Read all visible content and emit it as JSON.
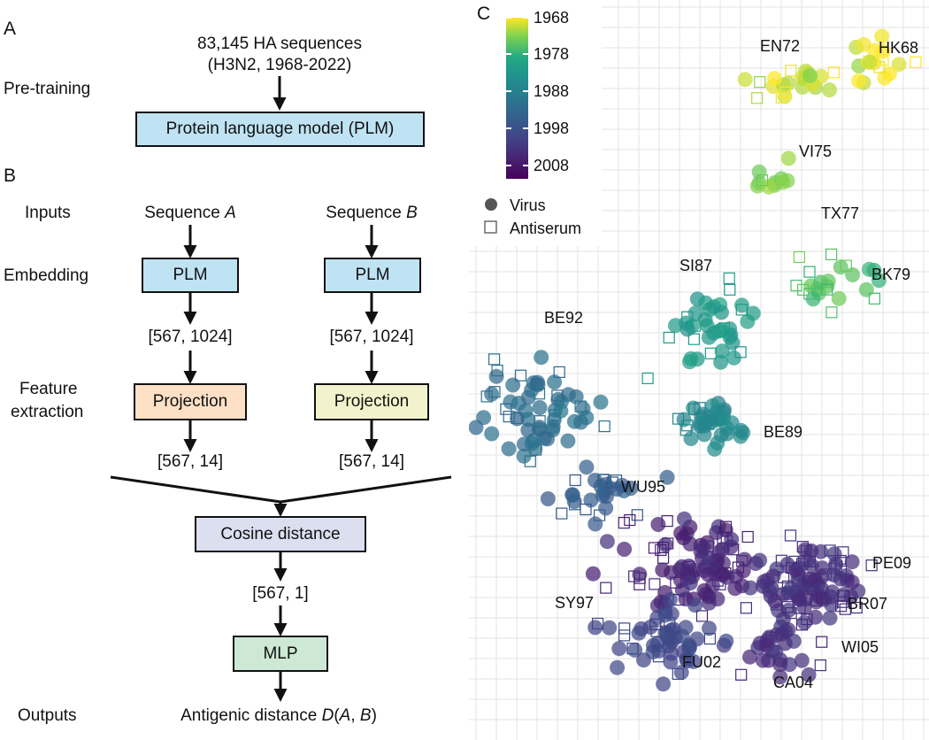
{
  "panels": {
    "a": "A",
    "b": "B",
    "c": "C"
  },
  "panel_a": {
    "input_line1": "83,145 HA sequences",
    "input_line2": "(H3N2, 1968-2022)",
    "stage_label": "Pre-training",
    "model_box": "Protein language model (PLM)"
  },
  "panel_b": {
    "stages": {
      "inputs": "Inputs",
      "embedding": "Embedding",
      "feature_line1": "Feature",
      "feature_line2": "extraction",
      "outputs": "Outputs"
    },
    "seq_a_prefix": "Sequence ",
    "seq_a_var": "A",
    "seq_b_prefix": "Sequence ",
    "seq_b_var": "B",
    "plm_box": "PLM",
    "embed_dim": "[567, 1024]",
    "projection_box": "Projection",
    "proj_dim": "[567, 14]",
    "cosine_box": "Cosine distance",
    "cos_dim": "[567, 1]",
    "mlp_box": "MLP",
    "output_text": "Antigenic distance ",
    "output_d": "D",
    "output_open": "(",
    "output_a": "A",
    "output_sep": ", ",
    "output_b": "B",
    "output_close": ")",
    "colors": {
      "plm": "#bfe3f3",
      "projection_a": "#fde0c5",
      "projection_b": "#f2f3cc",
      "cosine": "#dcdff0",
      "mlp": "#cde8d4"
    }
  },
  "panel_c": {
    "colorbar_ticks": [
      "1968",
      "1978",
      "1988",
      "1998",
      "2008"
    ],
    "legend": {
      "virus": "Virus",
      "antiserum": "Antiserum"
    },
    "cluster_labels": [
      "EN72",
      "HK68",
      "VI75",
      "TX77",
      "BK79",
      "SI87",
      "BE92",
      "BE89",
      "WU95",
      "PE09",
      "SY97",
      "BR07",
      "WI05",
      "FU02",
      "CA04"
    ],
    "colormap": "viridis"
  }
}
